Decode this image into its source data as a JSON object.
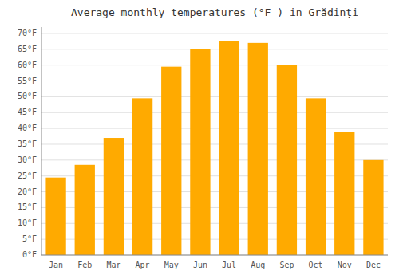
{
  "chart_data": {
    "type": "bar",
    "title": "Average monthly temperatures (°F ) in Grădinți",
    "categories": [
      "Jan",
      "Feb",
      "Mar",
      "Apr",
      "May",
      "Jun",
      "Jul",
      "Aug",
      "Sep",
      "Oct",
      "Nov",
      "Dec"
    ],
    "values": [
      24.5,
      28.5,
      37,
      49.5,
      59.5,
      65,
      67.5,
      67,
      60,
      49.5,
      39,
      30
    ],
    "color": "#FFAA00",
    "ylim": [
      0,
      72
    ],
    "yticks": [
      {
        "value": 0,
        "label": "0°F"
      },
      {
        "value": 5,
        "label": "5°F"
      },
      {
        "value": 10,
        "label": "10°F"
      },
      {
        "value": 15,
        "label": "15°F"
      },
      {
        "value": 20,
        "label": "20°F"
      },
      {
        "value": 25,
        "label": "25°F"
      },
      {
        "value": 30,
        "label": "30°F"
      },
      {
        "value": 35,
        "label": "35°F"
      },
      {
        "value": 40,
        "label": "40°F"
      },
      {
        "value": 45,
        "label": "45°F"
      },
      {
        "value": 50,
        "label": "50°F"
      },
      {
        "value": 55,
        "label": "55°F"
      },
      {
        "value": 60,
        "label": "60°F"
      },
      {
        "value": 65,
        "label": "65°F"
      },
      {
        "value": 70,
        "label": "70°F"
      }
    ],
    "grid": true
  }
}
